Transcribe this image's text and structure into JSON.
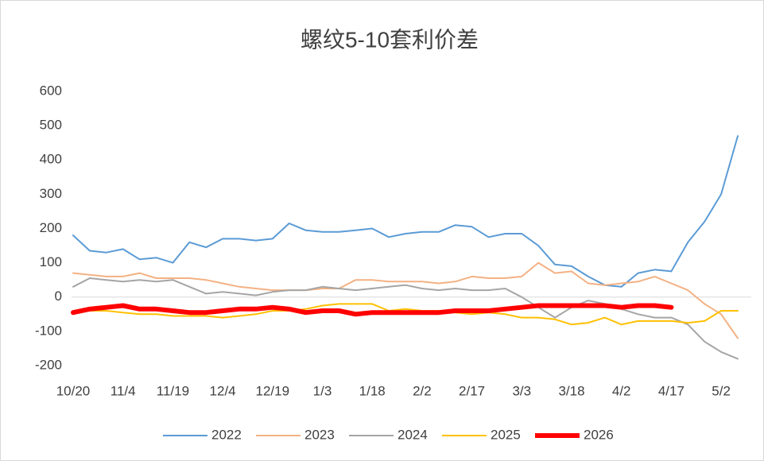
{
  "chart_data": {
    "type": "line",
    "title": "螺纹5-10套利价差",
    "categories": [
      "10/20",
      null,
      null,
      "11/4",
      null,
      null,
      "11/19",
      null,
      null,
      "12/4",
      null,
      null,
      "12/19",
      null,
      null,
      "1/3",
      null,
      null,
      "1/18",
      null,
      null,
      "2/2",
      null,
      null,
      "2/17",
      null,
      null,
      "3/3",
      null,
      null,
      "3/18",
      null,
      null,
      "4/2",
      null,
      null,
      "4/17",
      null,
      null,
      "5/2",
      null
    ],
    "ylim": [
      -200,
      600
    ],
    "yticks": [
      -200,
      -100,
      0,
      100,
      200,
      300,
      400,
      500,
      600
    ],
    "legend": "bottom",
    "series": [
      {
        "name": "2022",
        "color": "#5b9bd5",
        "width": 2,
        "values": [
          180,
          135,
          130,
          140,
          110,
          115,
          100,
          160,
          145,
          170,
          170,
          165,
          170,
          215,
          195,
          190,
          190,
          195,
          200,
          175,
          185,
          190,
          190,
          210,
          205,
          175,
          185,
          185,
          150,
          95,
          90,
          60,
          35,
          30,
          70,
          80,
          75,
          160,
          220,
          300,
          470
        ]
      },
      {
        "name": "2023",
        "color": "#f4b183",
        "width": 2,
        "values": [
          70,
          65,
          60,
          60,
          70,
          55,
          55,
          55,
          50,
          40,
          30,
          25,
          20,
          20,
          20,
          25,
          25,
          50,
          50,
          45,
          45,
          45,
          40,
          45,
          60,
          55,
          55,
          60,
          100,
          70,
          75,
          40,
          35,
          40,
          45,
          60,
          40,
          20,
          -20,
          -50,
          -120
        ]
      },
      {
        "name": "2024",
        "color": "#a5a5a5",
        "width": 2,
        "values": [
          30,
          55,
          50,
          45,
          50,
          45,
          50,
          30,
          10,
          15,
          10,
          5,
          15,
          20,
          20,
          30,
          25,
          20,
          25,
          30,
          35,
          25,
          20,
          25,
          20,
          20,
          25,
          0,
          -30,
          -60,
          -30,
          -10,
          -20,
          -35,
          -50,
          -60,
          -60,
          -80,
          -130,
          -160,
          -180
        ]
      },
      {
        "name": "2025",
        "color": "#ffc000",
        "width": 2,
        "values": [
          -45,
          -40,
          -40,
          -45,
          -50,
          -50,
          -55,
          -55,
          -55,
          -60,
          -55,
          -50,
          -40,
          -40,
          -35,
          -25,
          -20,
          -20,
          -20,
          -40,
          -35,
          -40,
          -40,
          -45,
          -50,
          -45,
          -50,
          -60,
          -60,
          -65,
          -80,
          -75,
          -60,
          -80,
          -70,
          -70,
          -70,
          -75,
          -70,
          -40,
          -40
        ]
      },
      {
        "name": "2026",
        "color": "#ff0000",
        "width": 6,
        "values": [
          -45,
          -35,
          -30,
          -25,
          -35,
          -35,
          -40,
          -45,
          -45,
          -40,
          -35,
          -35,
          -30,
          -35,
          -45,
          -40,
          -40,
          -50,
          -45,
          -45,
          -45,
          -45,
          -45,
          -40,
          -40,
          -40,
          -35,
          -30,
          -25,
          -25,
          -25,
          -25,
          -25,
          -30,
          -25,
          -25,
          -30,
          null,
          null,
          null,
          null
        ]
      }
    ]
  }
}
